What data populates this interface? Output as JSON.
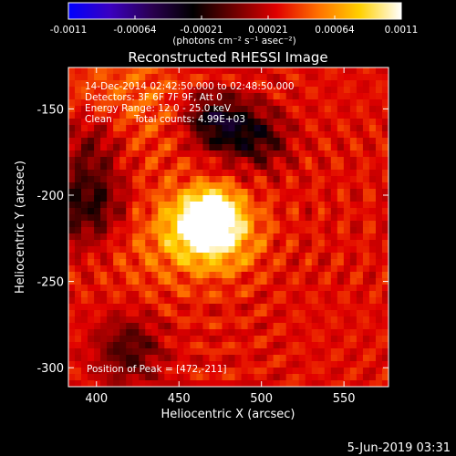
{
  "colors": {
    "background": "#000000",
    "foreground": "#ffffff",
    "colormap_stops": [
      "#0000ff",
      "#3a00c0",
      "#2a0050",
      "#000000",
      "#700000",
      "#e00000",
      "#ff7000",
      "#ffd000",
      "#ffffff"
    ]
  },
  "colorbar": {
    "range": [
      -0.0011,
      0.0011
    ],
    "tick_labels": [
      "-0.0011",
      "-0.00064",
      "-0.00021",
      "0.00021",
      "0.00064",
      "0.0011"
    ],
    "units_label": "(photons cm⁻² s⁻¹ asec⁻²)"
  },
  "chart_data": {
    "type": "heatmap",
    "title": "Reconstructed RHESSI Image",
    "xlabel": "Heliocentric X (arcsec)",
    "ylabel": "Heliocentric Y (arcsec)",
    "xlim": [
      383,
      577
    ],
    "ylim": [
      -311,
      -126
    ],
    "x_ticks": [
      400,
      450,
      500,
      550
    ],
    "y_ticks": [
      -300,
      -250,
      -200,
      -150
    ],
    "peak": {
      "x": 472,
      "y": -211
    },
    "background_level": 0.0003,
    "sources": [
      {
        "x": 472,
        "y": -211,
        "value": 0.0011,
        "sigma": 7
      },
      {
        "x": 462,
        "y": -217,
        "value": 0.0007,
        "sigma": 13
      },
      {
        "x": 478,
        "y": -222,
        "value": 0.0005,
        "sigma": 16
      },
      {
        "x": 438,
        "y": -228,
        "value": 0.0002,
        "sigma": 22
      },
      {
        "x": 420,
        "y": -145,
        "value": 0.0002,
        "sigma": 28
      }
    ],
    "negative_regions": [
      {
        "x": 395,
        "y": -205,
        "value": -0.0005,
        "sigma": 16
      },
      {
        "x": 398,
        "y": -170,
        "value": -0.0003,
        "sigma": 14
      },
      {
        "x": 420,
        "y": -290,
        "value": -0.0004,
        "sigma": 14
      },
      {
        "x": 480,
        "y": -160,
        "value": -0.0005,
        "sigma": 12
      },
      {
        "x": 500,
        "y": -168,
        "value": -0.0004,
        "sigma": 12
      },
      {
        "x": 465,
        "y": -155,
        "value": -0.00035,
        "sigma": 11
      }
    ]
  },
  "annotations": {
    "time_range": "14-Dec-2014 02:42:50.000 to 02:48:50.000",
    "detectors": "Detectors: 3F 6F 7F 9F, Att 0",
    "energy_range": "Energy Range: 12.0 - 25.0 keV",
    "clean_label": "Clean",
    "total_counts": "Total counts: 4.99E+03",
    "peak_position": "Position of Peak = [472,-211]"
  },
  "footer": {
    "timestamp": "5-Jun-2019 03:31"
  }
}
